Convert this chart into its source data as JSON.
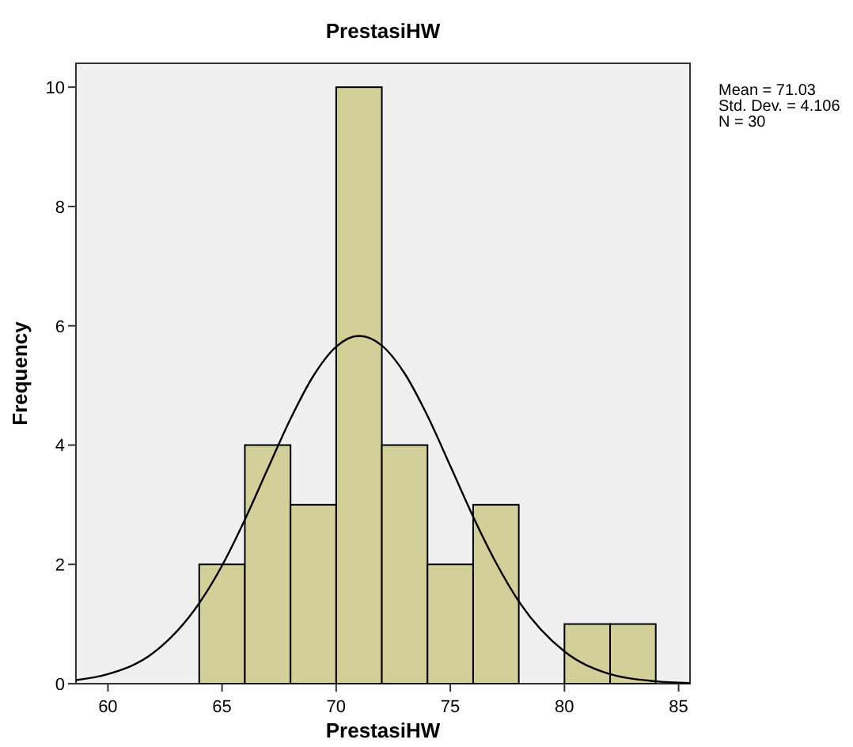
{
  "chart_data": {
    "type": "histogram",
    "title": "PrestasiHW",
    "xlabel": "PrestasiHW",
    "ylabel": "Frequency",
    "annotations": [
      "Mean = 71.03",
      "Std. Dev. = 4.106",
      "N = 30"
    ],
    "xlim": [
      58.6,
      85.5
    ],
    "xticks": [
      60,
      65,
      70,
      75,
      80,
      85
    ],
    "ylim": [
      0,
      10.4
    ],
    "yticks": [
      0,
      2,
      4,
      6,
      8,
      10
    ],
    "grid": false,
    "series": [
      {
        "color": "#d3cf98",
        "bins": [
          64,
          66,
          68,
          70,
          72,
          74,
          76,
          78,
          80,
          82,
          84
        ],
        "values": [
          2,
          4,
          3,
          10,
          4,
          2,
          3,
          0,
          1,
          1
        ]
      },
      {
        "type": "line",
        "color": "#000000",
        "x": [
          58.6,
          60,
          62,
          64,
          65,
          66,
          67,
          68,
          69,
          70,
          71,
          72,
          73,
          74,
          75,
          76,
          77,
          78,
          80,
          82,
          84,
          85.5
        ],
        "values": [
          0.06,
          0.16,
          0.52,
          1.35,
          1.98,
          2.75,
          3.6,
          4.44,
          5.16,
          5.65,
          5.83,
          5.67,
          5.2,
          4.49,
          3.65,
          2.8,
          2.03,
          1.38,
          0.54,
          0.16,
          0.04,
          0.01
        ]
      }
    ]
  }
}
